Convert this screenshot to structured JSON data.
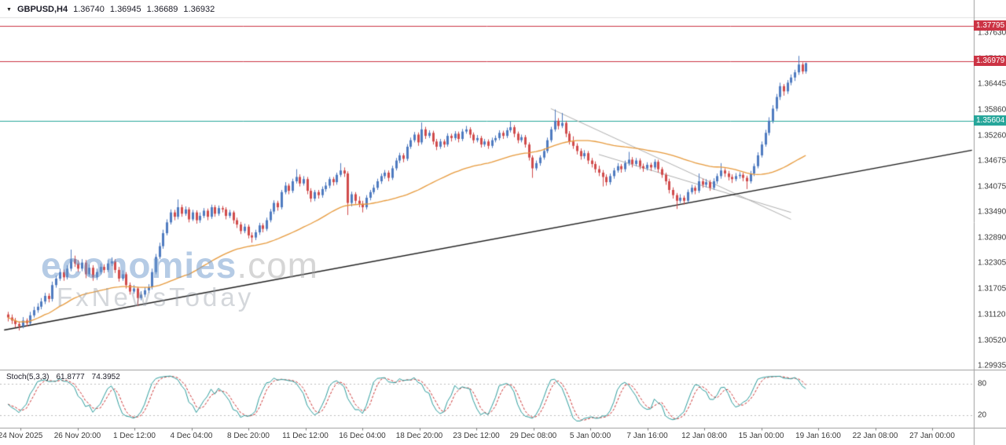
{
  "header": {
    "symbol": "GBPUSD,H4",
    "open": "1.36740",
    "high": "1.36945",
    "low": "1.36689",
    "close": "1.36932"
  },
  "watermark": {
    "brand": "economies",
    "domain": ".com",
    "tagline": "FxNewsToday"
  },
  "indicator": {
    "label": "Stoch(5,3,3)",
    "value_k": "61.8777",
    "value_d": "74.3952",
    "upper_level": "80",
    "lower_level": "20"
  },
  "colors": {
    "bull": "#4f7bc0",
    "bear": "#d14b4b",
    "ma": "#e79a3c",
    "stoch_k": "#2f9e9e",
    "stoch_d": "#cc3333",
    "separator": "#9e9e9e",
    "axis_text": "#3a3a3a"
  },
  "levels": [
    {
      "price": 1.37795,
      "label": "1.37795",
      "line": "#cc3344",
      "badge": "#cc3344"
    },
    {
      "price": 1.36979,
      "label": "1.36979",
      "line": "#cc3344",
      "badge": "#cc3344"
    },
    {
      "price": 1.35604,
      "label": "1.35604",
      "line": "#26a69a",
      "badge": "#26a69a"
    }
  ],
  "trendlines": [
    {
      "b1": -1,
      "p1": 1.3076,
      "b2": 261,
      "p2": 1.3492,
      "color": "#1a1a1a",
      "width": 1.4
    },
    {
      "b1": 147,
      "p1": 1.3588,
      "b2": 212,
      "p2": 1.3332,
      "color": "#b0b0b0",
      "width": 1
    },
    {
      "b1": 160,
      "p1": 1.3482,
      "b2": 212,
      "p2": 1.3348,
      "color": "#b0b0b0",
      "width": 1
    }
  ],
  "chart_data": {
    "type": "candlestick",
    "symbol": "GBPUSD",
    "timeframe": "H4",
    "ma_period": 50,
    "stochastic": {
      "k_period": 5,
      "slowing": 3,
      "d_period": 3,
      "range": [
        0,
        100
      ]
    },
    "y_range": [
      1.296,
      1.381
    ],
    "y_tick_labels": [
      "1.37630",
      "1.37030",
      "1.36445",
      "1.35860",
      "1.35260",
      "1.34675",
      "1.34075",
      "1.33490",
      "1.32890",
      "1.32305",
      "1.31705",
      "1.31120",
      "1.30520",
      "1.29935"
    ],
    "x_tick_labels": [
      "24 Nov 2025",
      "26 Nov 20:00",
      "1 Dec 12:00",
      "4 Dec 04:00",
      "8 Dec 20:00",
      "11 Dec 12:00",
      "16 Dec 04:00",
      "18 Dec 20:00",
      "23 Dec 12:00",
      "29 Dec 08:00",
      "5 Jan 00:00",
      "7 Jan 16:00",
      "12 Jan 08:00",
      "15 Jan 00:00",
      "19 Jan 16:00",
      "22 Jan 08:00",
      "27 Jan 00:00"
    ],
    "ohlc": [
      [
        1.3112,
        1.3118,
        1.3096,
        1.3105
      ],
      [
        1.3105,
        1.3112,
        1.309,
        1.3098
      ],
      [
        1.3098,
        1.3104,
        1.3082,
        1.309
      ],
      [
        1.309,
        1.3096,
        1.3075,
        1.3085
      ],
      [
        1.3085,
        1.3106,
        1.308,
        1.3098
      ],
      [
        1.3098,
        1.3103,
        1.3084,
        1.3092
      ],
      [
        1.3092,
        1.3118,
        1.3088,
        1.311
      ],
      [
        1.311,
        1.313,
        1.3105,
        1.3122
      ],
      [
        1.3122,
        1.3138,
        1.3116,
        1.313
      ],
      [
        1.313,
        1.315,
        1.3124,
        1.3142
      ],
      [
        1.3142,
        1.3162,
        1.3136,
        1.3155
      ],
      [
        1.3155,
        1.3161,
        1.314,
        1.3148
      ],
      [
        1.3148,
        1.3188,
        1.3142,
        1.318
      ],
      [
        1.318,
        1.3202,
        1.3174,
        1.3195
      ],
      [
        1.3195,
        1.3218,
        1.319,
        1.321
      ],
      [
        1.321,
        1.3216,
        1.319,
        1.3198
      ],
      [
        1.3198,
        1.3226,
        1.3193,
        1.3218
      ],
      [
        1.3218,
        1.3262,
        1.3212,
        1.324
      ],
      [
        1.324,
        1.3248,
        1.3222,
        1.323
      ],
      [
        1.323,
        1.3238,
        1.321,
        1.3218
      ],
      [
        1.3218,
        1.324,
        1.3212,
        1.3232
      ],
      [
        1.3232,
        1.3238,
        1.3196,
        1.3205
      ],
      [
        1.3205,
        1.3228,
        1.32,
        1.322
      ],
      [
        1.322,
        1.3226,
        1.319,
        1.3198
      ],
      [
        1.3198,
        1.3218,
        1.3192,
        1.321
      ],
      [
        1.321,
        1.323,
        1.3205,
        1.3222
      ],
      [
        1.3222,
        1.3228,
        1.3208,
        1.3215
      ],
      [
        1.3215,
        1.3238,
        1.321,
        1.323
      ],
      [
        1.323,
        1.3244,
        1.3224,
        1.3235
      ],
      [
        1.3235,
        1.324,
        1.3208,
        1.3215
      ],
      [
        1.3215,
        1.3222,
        1.3188,
        1.3195
      ],
      [
        1.3195,
        1.3214,
        1.319,
        1.3205
      ],
      [
        1.3205,
        1.321,
        1.3172,
        1.318
      ],
      [
        1.318,
        1.3186,
        1.3158,
        1.3165
      ],
      [
        1.3165,
        1.318,
        1.316,
        1.3172
      ],
      [
        1.3172,
        1.3176,
        1.3132,
        1.315
      ],
      [
        1.315,
        1.3166,
        1.3145,
        1.3158
      ],
      [
        1.3158,
        1.3175,
        1.3152,
        1.3168
      ],
      [
        1.3168,
        1.3182,
        1.3162,
        1.3175
      ],
      [
        1.3175,
        1.3218,
        1.317,
        1.321
      ],
      [
        1.321,
        1.3252,
        1.3205,
        1.3245
      ],
      [
        1.3245,
        1.3278,
        1.324,
        1.327
      ],
      [
        1.327,
        1.3308,
        1.3264,
        1.33
      ],
      [
        1.33,
        1.3332,
        1.3295,
        1.3325
      ],
      [
        1.3325,
        1.3355,
        1.332,
        1.3348
      ],
      [
        1.3348,
        1.3354,
        1.333,
        1.3338
      ],
      [
        1.3338,
        1.3378,
        1.3332,
        1.336
      ],
      [
        1.336,
        1.3366,
        1.3338,
        1.3345
      ],
      [
        1.3345,
        1.3362,
        1.334,
        1.3355
      ],
      [
        1.3355,
        1.336,
        1.3325,
        1.3332
      ],
      [
        1.3332,
        1.3354,
        1.3328,
        1.3348
      ],
      [
        1.3348,
        1.3353,
        1.3322,
        1.333
      ],
      [
        1.333,
        1.3348,
        1.3324,
        1.334
      ],
      [
        1.334,
        1.3358,
        1.3335,
        1.3352
      ],
      [
        1.3352,
        1.3357,
        1.333,
        1.3338
      ],
      [
        1.3338,
        1.3366,
        1.3333,
        1.336
      ],
      [
        1.336,
        1.3365,
        1.3338,
        1.3345
      ],
      [
        1.3345,
        1.3364,
        1.334,
        1.3358
      ],
      [
        1.3358,
        1.3363,
        1.3348,
        1.3355
      ],
      [
        1.3355,
        1.336,
        1.3332,
        1.334
      ],
      [
        1.334,
        1.3354,
        1.3335,
        1.3348
      ],
      [
        1.3348,
        1.3352,
        1.3322,
        1.333
      ],
      [
        1.333,
        1.3336,
        1.3312,
        1.332
      ],
      [
        1.332,
        1.3326,
        1.3298,
        1.3305
      ],
      [
        1.3305,
        1.3322,
        1.33,
        1.3315
      ],
      [
        1.3315,
        1.332,
        1.3288,
        1.3295
      ],
      [
        1.3295,
        1.3302,
        1.3278,
        1.329
      ],
      [
        1.329,
        1.3308,
        1.3284,
        1.3302
      ],
      [
        1.3302,
        1.3324,
        1.3296,
        1.3318
      ],
      [
        1.3318,
        1.3323,
        1.3302,
        1.331
      ],
      [
        1.331,
        1.3336,
        1.3305,
        1.333
      ],
      [
        1.333,
        1.3356,
        1.3325,
        1.335
      ],
      [
        1.335,
        1.3376,
        1.3344,
        1.337
      ],
      [
        1.337,
        1.3375,
        1.3352,
        1.336
      ],
      [
        1.336,
        1.34,
        1.3355,
        1.3395
      ],
      [
        1.3395,
        1.3418,
        1.339,
        1.341
      ],
      [
        1.341,
        1.3415,
        1.339,
        1.3398
      ],
      [
        1.3398,
        1.3426,
        1.3393,
        1.342
      ],
      [
        1.342,
        1.3448,
        1.3415,
        1.343
      ],
      [
        1.343,
        1.3436,
        1.3408,
        1.3415
      ],
      [
        1.3415,
        1.3432,
        1.341,
        1.3425
      ],
      [
        1.3425,
        1.343,
        1.339,
        1.3398
      ],
      [
        1.3398,
        1.3404,
        1.3372,
        1.338
      ],
      [
        1.338,
        1.34,
        1.3374,
        1.3395
      ],
      [
        1.3395,
        1.34,
        1.338,
        1.3388
      ],
      [
        1.3388,
        1.3408,
        1.3382,
        1.3402
      ],
      [
        1.3402,
        1.3418,
        1.3396,
        1.341
      ],
      [
        1.341,
        1.343,
        1.3404,
        1.3425
      ],
      [
        1.3425,
        1.343,
        1.341,
        1.3418
      ],
      [
        1.3418,
        1.344,
        1.3412,
        1.3435
      ],
      [
        1.3435,
        1.3462,
        1.343,
        1.3445
      ],
      [
        1.3445,
        1.3452,
        1.343,
        1.3438
      ],
      [
        1.3438,
        1.3443,
        1.3342,
        1.337
      ],
      [
        1.337,
        1.3396,
        1.3362,
        1.339
      ],
      [
        1.339,
        1.3395,
        1.3368,
        1.3375
      ],
      [
        1.3375,
        1.3385,
        1.336,
        1.3368
      ],
      [
        1.3368,
        1.3375,
        1.3348,
        1.336
      ],
      [
        1.336,
        1.3388,
        1.3355,
        1.3382
      ],
      [
        1.3382,
        1.34,
        1.3376,
        1.3395
      ],
      [
        1.3395,
        1.3412,
        1.339,
        1.3405
      ],
      [
        1.3405,
        1.3426,
        1.34,
        1.342
      ],
      [
        1.342,
        1.3438,
        1.3414,
        1.3432
      ],
      [
        1.3432,
        1.3446,
        1.3426,
        1.344
      ],
      [
        1.344,
        1.3445,
        1.342,
        1.3428
      ],
      [
        1.3428,
        1.3456,
        1.3423,
        1.345
      ],
      [
        1.345,
        1.3474,
        1.3445,
        1.3468
      ],
      [
        1.3468,
        1.3486,
        1.3462,
        1.348
      ],
      [
        1.348,
        1.3485,
        1.3464,
        1.3472
      ],
      [
        1.3472,
        1.3506,
        1.3467,
        1.35
      ],
      [
        1.35,
        1.3521,
        1.3495,
        1.3515
      ],
      [
        1.3515,
        1.3534,
        1.351,
        1.3528
      ],
      [
        1.3528,
        1.3533,
        1.3502,
        1.351
      ],
      [
        1.351,
        1.3556,
        1.3505,
        1.354
      ],
      [
        1.354,
        1.3546,
        1.3518,
        1.3525
      ],
      [
        1.3525,
        1.3538,
        1.352,
        1.3532
      ],
      [
        1.3532,
        1.3537,
        1.3505,
        1.3512
      ],
      [
        1.3512,
        1.3518,
        1.3492,
        1.35
      ],
      [
        1.35,
        1.3518,
        1.3495,
        1.3512
      ],
      [
        1.3512,
        1.3517,
        1.3498,
        1.3505
      ],
      [
        1.3505,
        1.3531,
        1.35,
        1.3525
      ],
      [
        1.3525,
        1.353,
        1.3512,
        1.352
      ],
      [
        1.352,
        1.3536,
        1.3515,
        1.353
      ],
      [
        1.353,
        1.3535,
        1.351,
        1.3518
      ],
      [
        1.3518,
        1.3541,
        1.3513,
        1.3535
      ],
      [
        1.3535,
        1.3548,
        1.353,
        1.354
      ],
      [
        1.354,
        1.3545,
        1.352,
        1.3528
      ],
      [
        1.3528,
        1.3533,
        1.3508,
        1.3515
      ],
      [
        1.3515,
        1.3527,
        1.351,
        1.352
      ],
      [
        1.352,
        1.3525,
        1.3498,
        1.3505
      ],
      [
        1.3505,
        1.3518,
        1.35,
        1.3512
      ],
      [
        1.3512,
        1.3517,
        1.3495,
        1.3502
      ],
      [
        1.3502,
        1.3521,
        1.3497,
        1.3515
      ],
      [
        1.3515,
        1.3526,
        1.351,
        1.352
      ],
      [
        1.352,
        1.3538,
        1.3515,
        1.3532
      ],
      [
        1.3532,
        1.3537,
        1.3518,
        1.3525
      ],
      [
        1.3525,
        1.3544,
        1.352,
        1.3538
      ],
      [
        1.3538,
        1.3558,
        1.3533,
        1.3545
      ],
      [
        1.3545,
        1.355,
        1.3522,
        1.353
      ],
      [
        1.353,
        1.3535,
        1.3508,
        1.3515
      ],
      [
        1.3515,
        1.3528,
        1.351,
        1.3522
      ],
      [
        1.3522,
        1.3527,
        1.3498,
        1.3505
      ],
      [
        1.3505,
        1.351,
        1.3468,
        1.3475
      ],
      [
        1.3475,
        1.348,
        1.3428,
        1.345
      ],
      [
        1.345,
        1.3468,
        1.3445,
        1.3462
      ],
      [
        1.3462,
        1.348,
        1.3456,
        1.3475
      ],
      [
        1.3475,
        1.3496,
        1.347,
        1.349
      ],
      [
        1.349,
        1.3521,
        1.3485,
        1.3515
      ],
      [
        1.3515,
        1.3546,
        1.351,
        1.354
      ],
      [
        1.354,
        1.3586,
        1.3535,
        1.356
      ],
      [
        1.356,
        1.3566,
        1.354,
        1.3548
      ],
      [
        1.3548,
        1.3578,
        1.3543,
        1.3555
      ],
      [
        1.3555,
        1.356,
        1.3522,
        1.353
      ],
      [
        1.353,
        1.3536,
        1.3505,
        1.3512
      ],
      [
        1.3512,
        1.3524,
        1.3495,
        1.3502
      ],
      [
        1.3502,
        1.3508,
        1.3482,
        1.349
      ],
      [
        1.349,
        1.3496,
        1.347,
        1.3478
      ],
      [
        1.3478,
        1.3492,
        1.3472,
        1.3485
      ],
      [
        1.3485,
        1.349,
        1.346,
        1.3468
      ],
      [
        1.3468,
        1.3474,
        1.3452,
        1.346
      ],
      [
        1.346,
        1.3466,
        1.344,
        1.3448
      ],
      [
        1.3448,
        1.3456,
        1.3432,
        1.344
      ],
      [
        1.344,
        1.3446,
        1.3408,
        1.343
      ],
      [
        1.343,
        1.3436,
        1.341,
        1.3418
      ],
      [
        1.3418,
        1.3438,
        1.3412,
        1.3432
      ],
      [
        1.3432,
        1.3451,
        1.3426,
        1.3445
      ],
      [
        1.3445,
        1.3462,
        1.344,
        1.3455
      ],
      [
        1.3455,
        1.346,
        1.344,
        1.3448
      ],
      [
        1.3448,
        1.3468,
        1.3442,
        1.3462
      ],
      [
        1.3462,
        1.3488,
        1.3456,
        1.347
      ],
      [
        1.347,
        1.3476,
        1.3452,
        1.346
      ],
      [
        1.346,
        1.3474,
        1.3455,
        1.3468
      ],
      [
        1.3468,
        1.3473,
        1.3448,
        1.3455
      ],
      [
        1.3455,
        1.3461,
        1.3442,
        1.345
      ],
      [
        1.345,
        1.3464,
        1.3445,
        1.3458
      ],
      [
        1.3458,
        1.3463,
        1.3444,
        1.3452
      ],
      [
        1.3452,
        1.3471,
        1.3447,
        1.3465
      ],
      [
        1.3465,
        1.347,
        1.344,
        1.3448
      ],
      [
        1.3448,
        1.3453,
        1.3428,
        1.3435
      ],
      [
        1.3435,
        1.344,
        1.3412,
        1.342
      ],
      [
        1.342,
        1.3426,
        1.3392,
        1.34
      ],
      [
        1.34,
        1.3406,
        1.338,
        1.3388
      ],
      [
        1.3388,
        1.3393,
        1.3356,
        1.3375
      ],
      [
        1.3375,
        1.339,
        1.337,
        1.3382
      ],
      [
        1.3382,
        1.3387,
        1.3366,
        1.3375
      ],
      [
        1.3375,
        1.3401,
        1.337,
        1.3395
      ],
      [
        1.3395,
        1.3412,
        1.339,
        1.3405
      ],
      [
        1.3405,
        1.341,
        1.339,
        1.3398
      ],
      [
        1.3398,
        1.3438,
        1.3393,
        1.342
      ],
      [
        1.342,
        1.3426,
        1.3405,
        1.3412
      ],
      [
        1.3412,
        1.3425,
        1.3406,
        1.3418
      ],
      [
        1.3418,
        1.3423,
        1.3398,
        1.3405
      ],
      [
        1.3405,
        1.3427,
        1.34,
        1.342
      ],
      [
        1.342,
        1.3438,
        1.3414,
        1.3432
      ],
      [
        1.3432,
        1.3462,
        1.3426,
        1.3445
      ],
      [
        1.3445,
        1.345,
        1.343,
        1.3438
      ],
      [
        1.3438,
        1.3444,
        1.3422,
        1.343
      ],
      [
        1.343,
        1.3436,
        1.3416,
        1.3425
      ],
      [
        1.3425,
        1.3439,
        1.342,
        1.3432
      ],
      [
        1.3432,
        1.3441,
        1.3426,
        1.3435
      ],
      [
        1.3435,
        1.344,
        1.342,
        1.3428
      ],
      [
        1.3428,
        1.3433,
        1.3402,
        1.342
      ],
      [
        1.342,
        1.3444,
        1.3415,
        1.3438
      ],
      [
        1.3438,
        1.3461,
        1.3432,
        1.3455
      ],
      [
        1.3455,
        1.3487,
        1.345,
        1.348
      ],
      [
        1.348,
        1.3512,
        1.3475,
        1.3505
      ],
      [
        1.3505,
        1.3539,
        1.35,
        1.3532
      ],
      [
        1.3532,
        1.3568,
        1.3526,
        1.356
      ],
      [
        1.356,
        1.3596,
        1.3554,
        1.3588
      ],
      [
        1.3588,
        1.3622,
        1.3582,
        1.3615
      ],
      [
        1.3615,
        1.3648,
        1.3608,
        1.364
      ],
      [
        1.364,
        1.3645,
        1.3618,
        1.3628
      ],
      [
        1.3628,
        1.3654,
        1.3622,
        1.3648
      ],
      [
        1.3648,
        1.3667,
        1.3642,
        1.366
      ],
      [
        1.366,
        1.3678,
        1.3652,
        1.3672
      ],
      [
        1.3672,
        1.371,
        1.3666,
        1.369
      ],
      [
        1.369,
        1.3695,
        1.3668,
        1.3674
      ],
      [
        1.3674,
        1.36945,
        1.36689,
        1.36932
      ]
    ]
  }
}
